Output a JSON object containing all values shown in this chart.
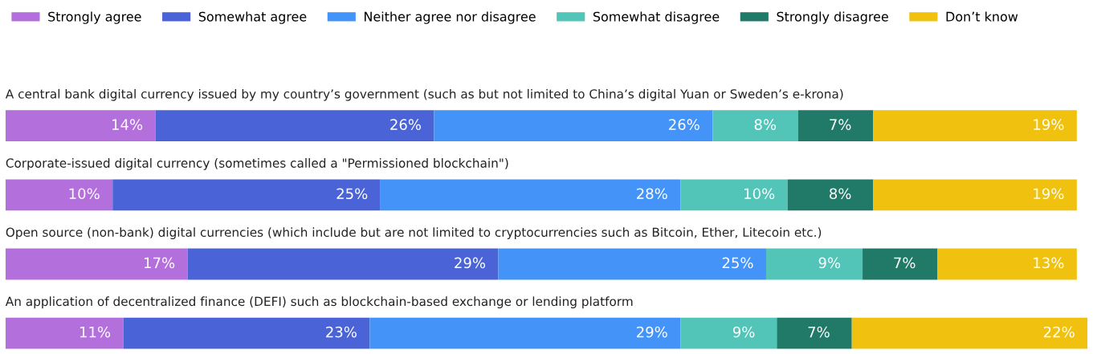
{
  "chart_data": {
    "type": "bar",
    "orientation": "horizontal",
    "stacked": true,
    "legend": "top left",
    "categories": [
      "A central bank digital currency issued by my country’s government (such as but not limited to China’s digital Yuan or Sweden’s e-krona)",
      "Corporate-issued digital currency (sometimes called a \"Permissioned blockchain\")",
      "Open source (non-bank) digital currencies (which include but are not limited to cryptocurrencies such as Bitcoin, Ether, Litecoin etc.)",
      "An application of decentralized finance (DEFI) such as blockchain-based exchange or lending platform"
    ],
    "series": [
      {
        "name": "Strongly agree",
        "color": "#b36fdb",
        "values": [
          14,
          10,
          17,
          11
        ],
        "value_labels": [
          "14%",
          "10%",
          "17%",
          "11%"
        ]
      },
      {
        "name": "Somewhat agree",
        "color": "#4a63d6",
        "values": [
          26,
          25,
          29,
          23
        ],
        "value_labels": [
          "26%",
          "25%",
          "29%",
          "23%"
        ]
      },
      {
        "name": "Neither agree nor disagree",
        "color": "#4493f8",
        "values": [
          26,
          28,
          25,
          29
        ],
        "value_labels": [
          "26%",
          "28%",
          "25%",
          "29%"
        ]
      },
      {
        "name": "Somewhat disagree",
        "color": "#52c5b8",
        "values": [
          8,
          10,
          9,
          9
        ],
        "value_labels": [
          "8%",
          "10%",
          "9%",
          "9%"
        ]
      },
      {
        "name": "Strongly disagree",
        "color": "#217a68",
        "values": [
          7,
          8,
          7,
          7
        ],
        "value_labels": [
          "7%",
          "8%",
          "7%",
          "7%"
        ]
      },
      {
        "name": "Don’t know",
        "color": "#f0c20f",
        "values": [
          19,
          19,
          13,
          22
        ],
        "value_labels": [
          "19%",
          "19%",
          "13%",
          "22%"
        ]
      }
    ]
  }
}
